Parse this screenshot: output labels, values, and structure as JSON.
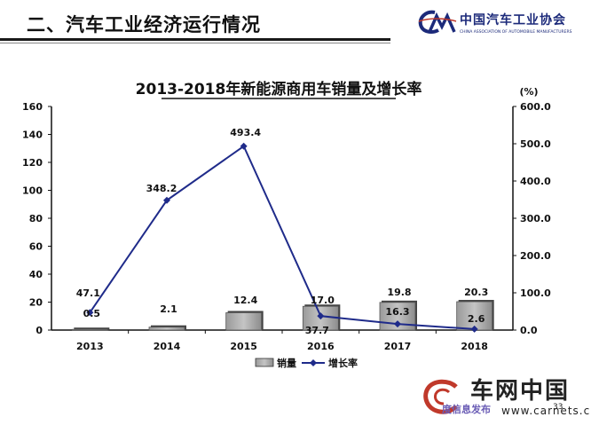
{
  "header": {
    "title": "二、汽车工业经济运行情况",
    "logo_cn": "中国汽车工业协会",
    "logo_en": "CHINA ASSOCIATION OF AUTOMOBILE MANUFACTURERS"
  },
  "footer": {
    "watermark_cn": "车网中国",
    "watermark_url": "www.carnets.cn",
    "overlay_text": "度信息发布",
    "page_number": "33"
  },
  "chart_data": {
    "type": "bar",
    "title": "2013-2018年新能源商用车销量及增长率",
    "categories": [
      "2013",
      "2014",
      "2015",
      "2016",
      "2017",
      "2018"
    ],
    "series": [
      {
        "name": "销量",
        "type": "bar",
        "axis": "left",
        "values": [
          0.5,
          2.1,
          12.4,
          17.0,
          19.8,
          20.3
        ]
      },
      {
        "name": "增长率",
        "type": "line",
        "axis": "right",
        "values": [
          47.1,
          348.2,
          493.4,
          37.7,
          16.3,
          2.6
        ]
      }
    ],
    "y_left": {
      "min": 0,
      "max": 160,
      "ticks": [
        "0",
        "20",
        "40",
        "60",
        "80",
        "100",
        "120",
        "140",
        "160"
      ]
    },
    "y_right": {
      "unit": "(%)",
      "min": 0,
      "max": 600,
      "ticks": [
        "0.0",
        "100.0",
        "200.0",
        "300.0",
        "400.0",
        "500.0",
        "600.0"
      ]
    },
    "bar_labels": [
      "0.5",
      "2.1",
      "12.4",
      "17.0",
      "19.8",
      "20.3"
    ],
    "line_labels": [
      "47.1",
      "348.2",
      "493.4",
      "37.7",
      "16.3",
      "2.6"
    ],
    "legend": {
      "position": "bottom"
    },
    "grid": false,
    "colors": {
      "bar_fill": "#a9a9a9",
      "bar_shadow": "#444444",
      "line": "#1f2b8a"
    }
  }
}
